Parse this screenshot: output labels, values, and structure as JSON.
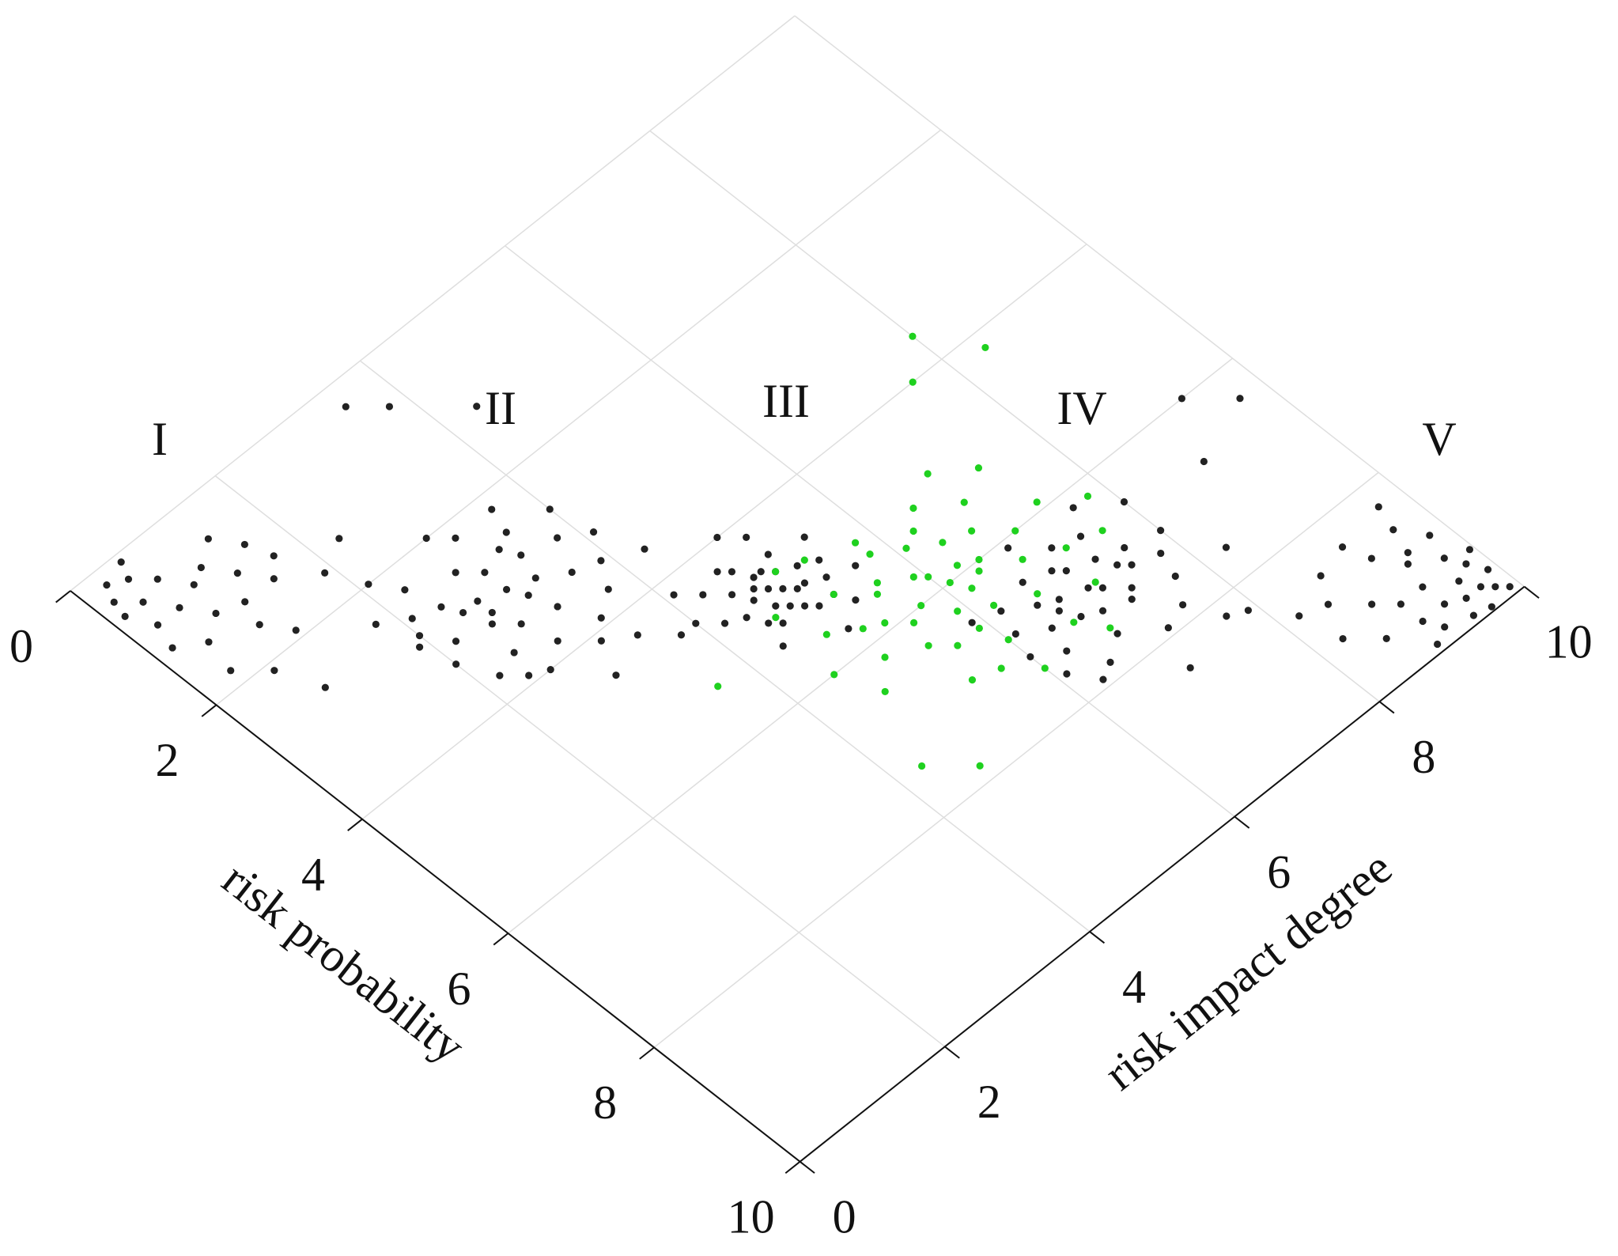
{
  "chart_data": {
    "type": "scatter",
    "xlabel": "risk impact degree",
    "ylabel": "risk probability",
    "xlim": [
      0,
      10
    ],
    "ylim": [
      0,
      10
    ],
    "xticks": [
      0,
      2,
      4,
      6,
      8,
      10
    ],
    "yticks": [
      0,
      2,
      4,
      6,
      8,
      10
    ],
    "grid": true,
    "annotations": [
      "I",
      "II",
      "III",
      "IV",
      "V"
    ],
    "series": [
      {
        "color": "#222222",
        "x": [
          0.3,
          0.5,
          0.4,
          0.7,
          0.2,
          0.9,
          0.6,
          1.1,
          0.8,
          1.3,
          0.5,
          1.5,
          1.0,
          0.3,
          1.7,
          1.2,
          0.7,
          1.9,
          2.1,
          0.4,
          1.4,
          0.2,
          1.8,
          0.9,
          2.3,
          0.6,
          0.15,
          1.6,
          1.1,
          2.0,
          3.0,
          2.6,
          3.4,
          2.8,
          3.2,
          2.4,
          3.6,
          3.1,
          2.9,
          2.2,
          3.8,
          2.7,
          3.3,
          3.5,
          2.5,
          3.0,
          2.8,
          3.7,
          2.3,
          3.9,
          2.1,
          3.2,
          3.6,
          2.6,
          4.1,
          2.0,
          3.4,
          2.9,
          3.1,
          2.7,
          3.3,
          2.5,
          4.0,
          2.4,
          3.5,
          1.9,
          4.3,
          3.0,
          2.2,
          3.8,
          3.5,
          3.8,
          4.4,
          4.9,
          4.7,
          5.0,
          4.8,
          5.1,
          4.6,
          4.9,
          5.2,
          4.5,
          5.0,
          4.7,
          5.3,
          4.4,
          4.8,
          5.1,
          4.6,
          5.2,
          4.3,
          4.9,
          4.8,
          5.0,
          4.5,
          5.4,
          4.7,
          4.6,
          5.3,
          4.2,
          5.1,
          4.4,
          5.5,
          4.9,
          4.1,
          5.6,
          4.0,
          5.0,
          7.0,
          6.7,
          7.3,
          6.9,
          7.2,
          6.5,
          7.5,
          7.1,
          6.8,
          6.4,
          7.6,
          6.6,
          7.3,
          7.4,
          6.3,
          7.0,
          6.9,
          7.7,
          6.2,
          7.8,
          6.1,
          7.2,
          7.6,
          6.5,
          8.0,
          6.0,
          7.5,
          6.8,
          7.1,
          6.7,
          7.4,
          6.6,
          8.0,
          6.3,
          7.7,
          5.9,
          8.3,
          7.0,
          6.1,
          7.9,
          9.7,
          9.3,
          8.9,
          9.6,
          9.3,
          9.7,
          9.4,
          9.8,
          9.0,
          9.9,
          9.5,
          9.1,
          8.8,
          9.7,
          9.2,
          9.8,
          9.4,
          8.6,
          9.6,
          9.3,
          9.9,
          8.5,
          9.5,
          8.9,
          9.8,
          8.3,
          9.1,
          9.6,
          8.7,
          9.95,
          8.2,
          9.0,
          9.7
        ],
        "values": [
          0.2,
          0.3,
          0.6,
          0.5,
          0.4,
          0.8,
          0.9,
          0.7,
          1.2,
          1.0,
          1.4,
          1.3,
          1.6,
          0.9,
          1.1,
          1.9,
          2.1,
          1.6,
          2.0,
          1.8,
          0.5,
          1.2,
          2.4,
          2.6,
          1.4,
          0.1,
          0.6,
          0.8,
          1.3,
          2.8,
          3.0,
          3.2,
          2.8,
          2.5,
          3.5,
          2.7,
          3.3,
          2.2,
          3.8,
          3.1,
          2.9,
          2.9,
          3.1,
          2.5,
          3.6,
          2.7,
          3.4,
          3.7,
          2.3,
          3.4,
          2.6,
          4.1,
          2.2,
          4.0,
          3.1,
          3.3,
          3.9,
          2.0,
          3.2,
          3.1,
          2.6,
          2.9,
          2.6,
          3.9,
          4.3,
          2.9,
          3.6,
          4.5,
          3.7,
          4.6,
          0.3,
          0.6,
          1.2,
          4.9,
          5.0,
          4.7,
          4.6,
          5.0,
          4.8,
          5.2,
          4.8,
          4.6,
          5.3,
          4.4,
          5.1,
          4.9,
          5.1,
          4.5,
          5.2,
          5.3,
          4.4,
          4.6,
          4.8,
          5.0,
          5.1,
          4.9,
          4.7,
          4.3,
          5.5,
          4.8,
          4.2,
          5.4,
          4.6,
          4.0,
          4.2,
          5.2,
          4.6,
          5.7,
          7.0,
          7.2,
          6.8,
          6.6,
          7.4,
          6.8,
          7.1,
          6.4,
          7.6,
          7.1,
          6.9,
          6.5,
          7.3,
          6.5,
          7.4,
          6.7,
          7.3,
          7.5,
          6.6,
          7.2,
          6.9,
          7.9,
          6.2,
          7.8,
          7.0,
          7.2,
          7.8,
          6.1,
          7.1,
          6.9,
          7.0,
          7.0,
          6.5,
          7.9,
          8.2,
          6.5,
          7.6,
          8.4,
          7.6,
          8.3,
          6.4,
          6.0,
          6.7,
          9.5,
          9.6,
          9.2,
          9.0,
          9.8,
          9.3,
          9.6,
          8.9,
          9.8,
          9.1,
          9.7,
          8.7,
          9.4,
          9.9,
          9.5,
          8.6,
          9.3,
          9.9,
          8.8,
          9.7,
          9.9,
          8.9,
          9.2,
          8.4,
          9.95,
          8.5,
          9.3,
          8.7,
          9.6,
          8.3
        ]
      },
      {
        "color": "#1fd11f",
        "x": [
          6.0,
          5.5,
          6.4,
          5.8,
          6.2,
          5.3,
          6.7,
          5.9,
          6.1,
          5.6,
          6.8,
          5.2,
          6.5,
          5.7,
          6.3,
          5.4,
          7.0,
          6.0,
          5.1,
          6.6,
          5.8,
          7.2,
          5.0,
          6.9,
          5.6,
          6.2,
          5.9,
          6.4,
          5.5,
          6.1,
          7.4,
          4.8,
          6.6,
          5.3,
          7.1,
          4.7,
          6.0,
          6.9,
          5.7,
          7.6,
          4.6,
          6.5,
          5.9,
          6.3,
          7.8,
          4.5,
          6.8,
          5.0,
          7.3,
          5.4,
          8.4,
          8.0,
          7.6,
          4.7,
          4.3,
          3.6
        ],
        "values": [
          5.8,
          5.6,
          6.1,
          5.2,
          6.5,
          5.9,
          5.7,
          6.3,
          5.4,
          6.6,
          6.3,
          5.3,
          5.1,
          6.0,
          5.9,
          6.4,
          6.0,
          6.9,
          5.8,
          6.7,
          5.0,
          6.5,
          6.2,
          5.4,
          5.5,
          6.2,
          5.7,
          5.6,
          6.1,
          6.0,
          5.9,
          5.6,
          7.2,
          4.8,
          7.0,
          6.5,
          7.4,
          4.9,
          7.1,
          6.6,
          5.1,
          6.0,
          6.6,
          5.3,
          6.2,
          6.0,
          7.5,
          4.7,
          5.2,
          7.0,
          4.2,
          3.6,
          4.0,
          7.8,
          7.4,
          5.3
        ]
      }
    ]
  }
}
